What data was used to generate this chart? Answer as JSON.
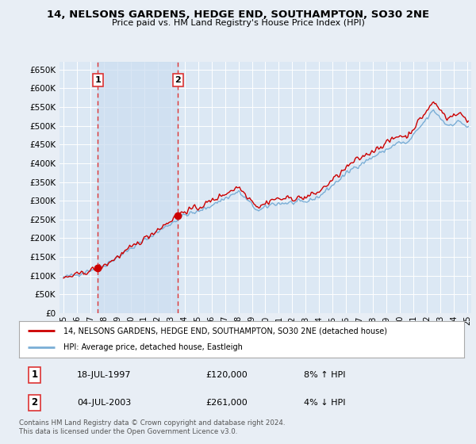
{
  "title": "14, NELSONS GARDENS, HEDGE END, SOUTHAMPTON, SO30 2NE",
  "subtitle": "Price paid vs. HM Land Registry's House Price Index (HPI)",
  "bg_color": "#e8eef5",
  "plot_bg_color": "#dce8f4",
  "grid_color": "#c8d8e8",
  "shade_color": "#ccddf0",
  "sale1_date_num": 1997.54,
  "sale1_price": 120000,
  "sale1_label": "18-JUL-1997",
  "sale1_pct": "8% ↑ HPI",
  "sale2_date_num": 2003.5,
  "sale2_price": 261000,
  "sale2_label": "04-JUL-2003",
  "sale2_pct": "4% ↓ HPI",
  "ylabel_values": [
    0,
    50000,
    100000,
    150000,
    200000,
    250000,
    300000,
    350000,
    400000,
    450000,
    500000,
    550000,
    600000,
    650000
  ],
  "ylim": [
    0,
    670000
  ],
  "xlim_start": 1994.7,
  "xlim_end": 2025.3,
  "xtick_years": [
    1995,
    1996,
    1997,
    1998,
    1999,
    2000,
    2001,
    2002,
    2003,
    2004,
    2005,
    2006,
    2007,
    2008,
    2009,
    2010,
    2011,
    2012,
    2013,
    2014,
    2015,
    2016,
    2017,
    2018,
    2019,
    2020,
    2021,
    2022,
    2023,
    2024,
    2025
  ],
  "legend_label_red": "14, NELSONS GARDENS, HEDGE END, SOUTHAMPTON, SO30 2NE (detached house)",
  "legend_label_blue": "HPI: Average price, detached house, Eastleigh",
  "footer": "Contains HM Land Registry data © Crown copyright and database right 2024.\nThis data is licensed under the Open Government Licence v3.0.",
  "red_color": "#cc0000",
  "blue_color": "#7aaed6",
  "dashed_color": "#dd3333"
}
